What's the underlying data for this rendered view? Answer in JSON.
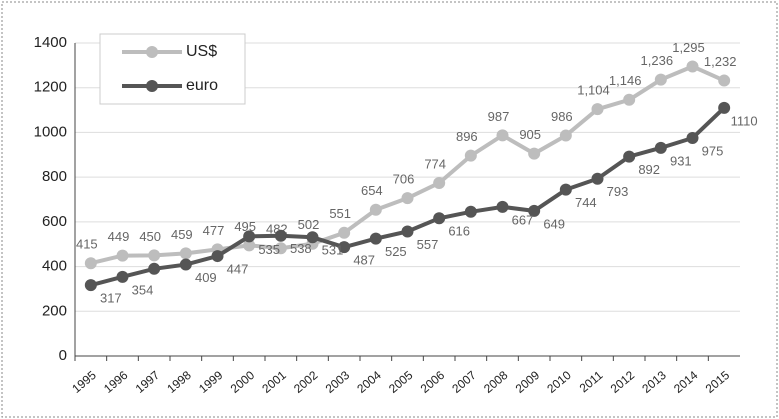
{
  "chart_data": {
    "type": "line",
    "categories": [
      "1995",
      "1996",
      "1997",
      "1998",
      "1999",
      "2000",
      "2001",
      "2002",
      "2003",
      "2004",
      "2005",
      "2006",
      "2007",
      "2008",
      "2009",
      "2010",
      "2011",
      "2012",
      "2013",
      "2014",
      "2015"
    ],
    "series": [
      {
        "name": "US$",
        "color": "#bdbdbd",
        "values": [
          415,
          449,
          450,
          459,
          477,
          495,
          482,
          502,
          551,
          654,
          706,
          774,
          896,
          987,
          905,
          986,
          1104,
          1146,
          1236,
          1295,
          1232
        ],
        "value_labels": [
          "415",
          "449",
          "450",
          "459",
          "477",
          "495",
          "482",
          "502",
          "551",
          "654",
          "706",
          "774",
          "896",
          "987",
          "905",
          "986",
          "1,104",
          "1,146",
          "1,236",
          "1,295",
          "1,232"
        ]
      },
      {
        "name": "euro",
        "color": "#555555",
        "values": [
          317,
          354,
          390,
          409,
          447,
          535,
          538,
          531,
          487,
          525,
          557,
          616,
          645,
          667,
          649,
          744,
          793,
          892,
          931,
          975,
          1110
        ],
        "value_labels": [
          "317",
          "354",
          null,
          "409",
          "447",
          "535",
          "538",
          "531",
          "487",
          "525",
          "557",
          "616",
          null,
          "667",
          "649",
          "744",
          "793",
          "892",
          "931",
          "975",
          "1110"
        ]
      }
    ],
    "ylim": [
      0,
      1400
    ],
    "yticks": [
      0,
      200,
      400,
      600,
      800,
      1000,
      1200,
      1400
    ],
    "grid": true,
    "legend": "upper left"
  }
}
